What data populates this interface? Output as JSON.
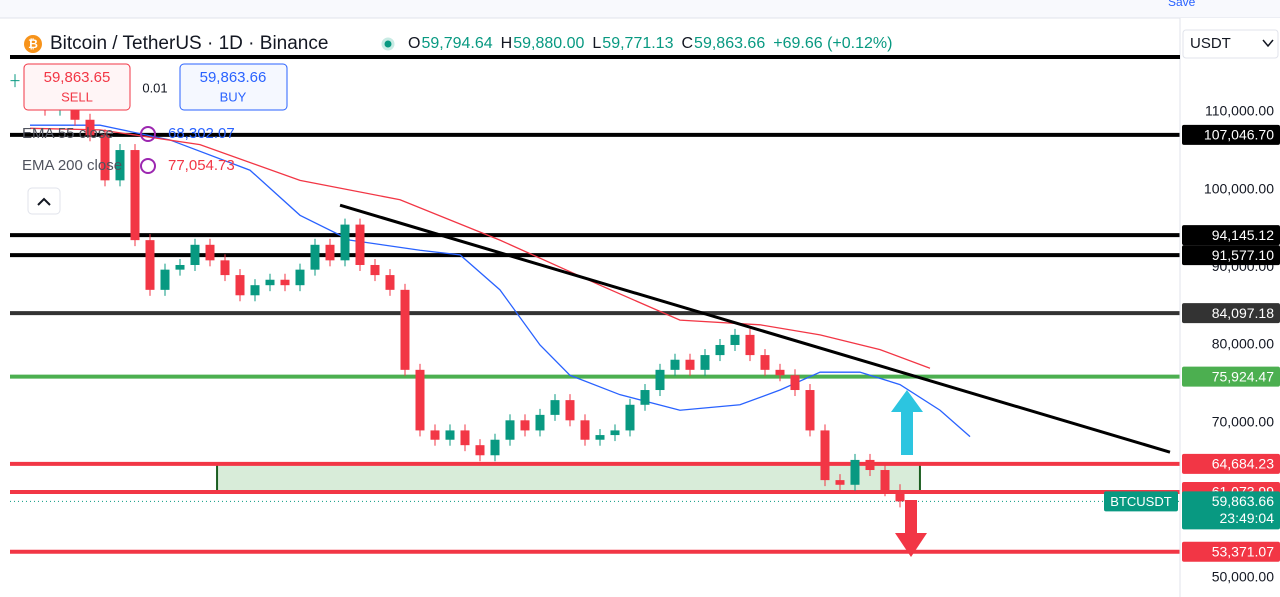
{
  "header": {
    "symbol": "Bitcoin / TetherUS · 1D · Binance",
    "ohlc": [
      {
        "label": "O",
        "value": "59,794.64"
      },
      {
        "label": "H",
        "value": "59,880.00"
      },
      {
        "label": "L",
        "value": "59,771.13"
      },
      {
        "label": "C",
        "value": "59,863.66"
      }
    ],
    "change": "+69.66 (+0.12%)",
    "sell_price": "59,863.65",
    "sell": "SELL",
    "quantity": "0.01",
    "buy_price": "59,863.66",
    "buy": "BUY",
    "currency": "USDT",
    "save": "Save"
  },
  "chart_data": {
    "type": "candlestick",
    "ylim": [
      47550,
      124420
    ],
    "xlim": [
      -0.333,
      77.667
    ],
    "yticks": [
      {
        "value": 110000,
        "label": "110,000.00"
      },
      {
        "value": 100000,
        "label": "100,000.00"
      },
      {
        "value": 90000,
        "label": "90,000.00"
      },
      {
        "value": 80000,
        "label": "80,000.00"
      },
      {
        "value": 70000,
        "label": "70,000.00"
      },
      {
        "value": 50000,
        "label": "50,000.00"
      }
    ],
    "close": [
      114100,
      112200,
      110300,
      111500,
      109000,
      107000,
      101200,
      105100,
      93500,
      87100,
      89700,
      90300,
      92900,
      90900,
      89000,
      86400,
      87700,
      88400,
      87700,
      89700,
      92900,
      90900,
      95500,
      90300,
      89000,
      87100,
      76800,
      69000,
      67800,
      69000,
      67100,
      65800,
      67800,
      70300,
      69000,
      71000,
      72900,
      70300,
      67800,
      68400,
      69000,
      72300,
      74200,
      76800,
      78100,
      76800,
      78700,
      80000,
      81300,
      78700,
      76800,
      76100,
      74200,
      69000,
      62600,
      62000,
      65200,
      63900,
      61300,
      59863.66
    ],
    "up_color": "#089981",
    "down_color": "#f23645",
    "series": [
      {
        "name": "EMA 55 close",
        "color": "#2962ff",
        "last_label": "68,302.07",
        "x": [
          1,
          5.67,
          10.33,
          15.67,
          19,
          22.33,
          27,
          29.67,
          32.33,
          35,
          37,
          40.33,
          44.33,
          48.33,
          51,
          53.67,
          56.33,
          59,
          61.67,
          63.67
        ],
        "values": [
          108300,
          108300,
          106400,
          102500,
          96700,
          93500,
          92200,
          91600,
          87100,
          80000,
          76100,
          73600,
          71600,
          72300,
          74200,
          76500,
          76500,
          74900,
          71600,
          68200
        ]
      },
      {
        "name": "EMA 200 close",
        "color": "#f23645",
        "last_label": "77,054.73",
        "x": [
          1,
          5.67,
          12.33,
          19,
          25.67,
          32.33,
          39,
          44.33,
          49.67,
          53.67,
          57.67,
          61
        ],
        "values": [
          107900,
          107700,
          105800,
          101200,
          98700,
          93500,
          87700,
          83200,
          82600,
          81300,
          79400,
          77000
        ]
      }
    ],
    "trend_line": {
      "x": [
        21.67,
        77
      ],
      "values": [
        98000,
        66200
      ],
      "color": "#000000"
    },
    "zone": {
      "x": [
        13.47,
        60.33
      ],
      "values": [
        61073.99,
        64684.23
      ]
    },
    "levels": [
      {
        "value": 107046.7,
        "label": "107,046.70",
        "color": "#000000"
      },
      {
        "value": 94145.12,
        "label": "94,145.12",
        "color": "#000000"
      },
      {
        "value": 91577.1,
        "label": "91,577.10",
        "color": "#000000"
      },
      {
        "value": 84097.18,
        "label": "84,097.18",
        "color": "#333333"
      },
      {
        "value": 75924.47,
        "label": "75,924.47",
        "color": "#4caf50"
      },
      {
        "value": 64684.23,
        "label": "64,684.23",
        "color": "#f23645"
      },
      {
        "value": 61073.99,
        "label": "61,073.99",
        "color": "#f23645"
      },
      {
        "value": 53371.07,
        "label": "53,371.07",
        "color": "#f23645"
      }
    ],
    "last_price": {
      "value": 59863.66,
      "label": "59,863.66",
      "countdown": "23:49:04",
      "symbol": "BTCUSDT",
      "color": "#089981"
    }
  }
}
